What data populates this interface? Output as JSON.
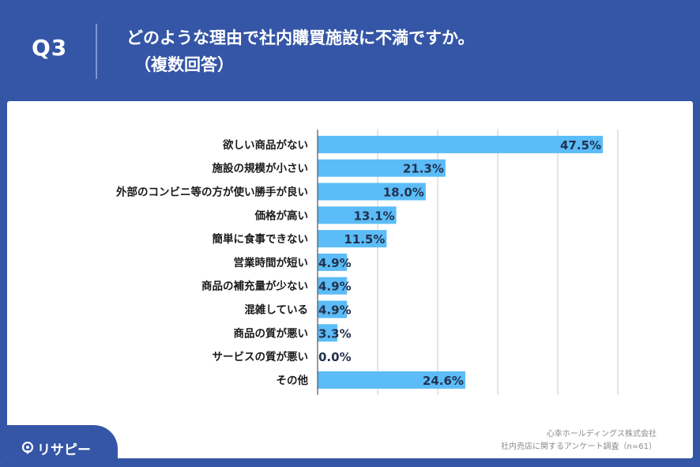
{
  "header": {
    "question_number": "Q3",
    "title_line1": "どのような理由で社内購買施設に不満ですか。",
    "title_line2": "（複数回答）"
  },
  "source": {
    "line1": "心幸ホールディングス株式会社",
    "line2": "社内売店に関するアンケート調査（n=61）"
  },
  "brand": {
    "name": "リサピー"
  },
  "colors": {
    "background": "#3556a6",
    "bar": "#5bbcf7",
    "label_text": "#1a1a1a",
    "value_text": "#22324f",
    "grid": "#c9c9c9"
  },
  "chart_data": {
    "type": "bar",
    "orientation": "horizontal",
    "categories": [
      "欲しい商品がない",
      "施設の規模が小さい",
      "外部のコンビニ等の方が使い勝手が良い",
      "価格が高い",
      "簡単に食事できない",
      "営業時間が短い",
      "商品の補充量が少ない",
      "混雑している",
      "商品の質が悪い",
      "サービスの質が悪い",
      "その他"
    ],
    "values": [
      47.5,
      21.3,
      18.0,
      13.1,
      11.5,
      4.9,
      4.9,
      4.9,
      3.3,
      0.0,
      24.6
    ],
    "data_labels": [
      "47.5%",
      "21.3%",
      "18.0%",
      "13.1%",
      "11.5%",
      "4.9%",
      "4.9%",
      "4.9%",
      "3.3%",
      "0.0%",
      "24.6%"
    ],
    "xlim": [
      0,
      50
    ],
    "grid": true
  }
}
